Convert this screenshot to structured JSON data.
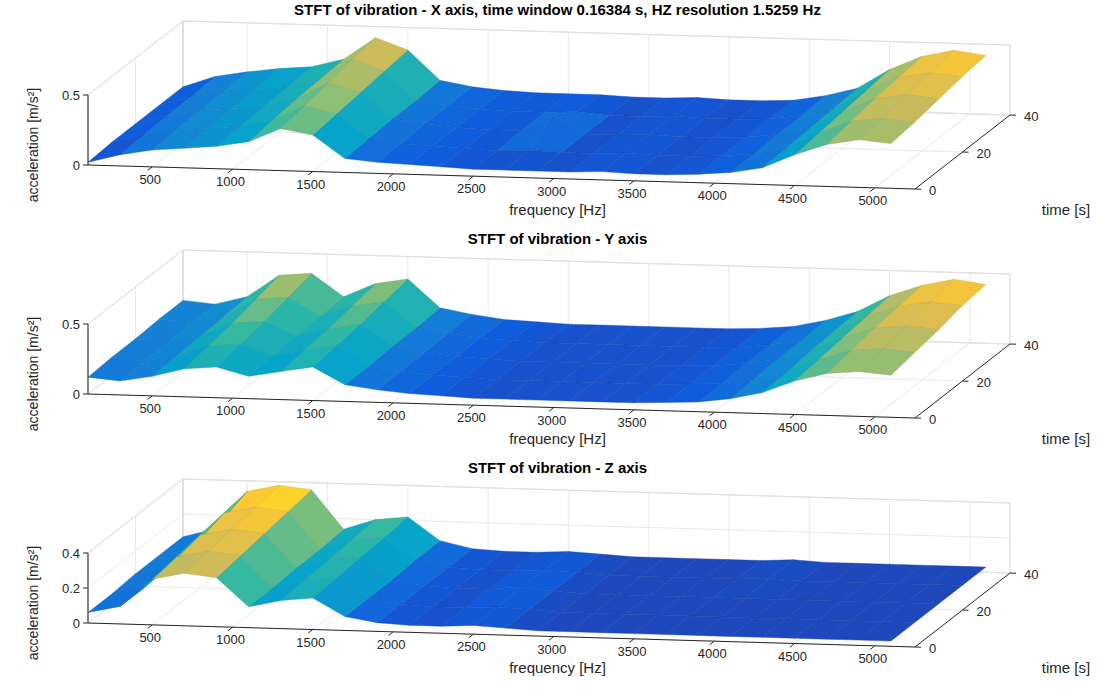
{
  "chart_data": [
    {
      "type": "surface",
      "title": "STFT of vibration - X axis, time window 0.16384 s, HZ resolution 1.5259 Hz",
      "xlabel": "frequency [Hz]",
      "ylabel": "time [s]",
      "zlabel": "acceleration [m/s²]",
      "x": [
        100,
        300,
        500,
        700,
        900,
        1100,
        1300,
        1500,
        1700,
        1900,
        2100,
        2300,
        2500,
        2700,
        2900,
        3100,
        3300,
        3500,
        3700,
        3900,
        4100,
        4300,
        4500,
        4700,
        4900,
        5100
      ],
      "y": [
        0,
        10,
        20,
        30,
        40
      ],
      "z": [
        [
          0.02,
          0.08,
          0.12,
          0.14,
          0.16,
          0.2,
          0.3,
          0.26,
          0.1,
          0.08,
          0.07,
          0.06,
          0.05,
          0.05,
          0.05,
          0.05,
          0.06,
          0.05,
          0.05,
          0.06,
          0.08,
          0.12,
          0.22,
          0.3,
          0.34,
          0.32
        ],
        [
          0.03,
          0.09,
          0.13,
          0.15,
          0.17,
          0.22,
          0.33,
          0.28,
          0.11,
          0.08,
          0.07,
          0.06,
          0.05,
          0.06,
          0.05,
          0.05,
          0.06,
          0.05,
          0.05,
          0.06,
          0.08,
          0.13,
          0.24,
          0.33,
          0.36,
          0.34
        ],
        [
          0.03,
          0.1,
          0.14,
          0.16,
          0.18,
          0.24,
          0.36,
          0.3,
          0.12,
          0.09,
          0.07,
          0.06,
          0.06,
          0.18,
          0.05,
          0.05,
          0.06,
          0.05,
          0.05,
          0.06,
          0.09,
          0.14,
          0.26,
          0.36,
          0.4,
          0.37
        ],
        [
          0.03,
          0.1,
          0.14,
          0.17,
          0.19,
          0.25,
          0.4,
          0.32,
          0.12,
          0.09,
          0.07,
          0.06,
          0.06,
          0.07,
          0.05,
          0.05,
          0.06,
          0.05,
          0.05,
          0.06,
          0.09,
          0.15,
          0.28,
          0.38,
          0.42,
          0.4
        ],
        [
          0.03,
          0.11,
          0.15,
          0.18,
          0.2,
          0.26,
          0.42,
          0.34,
          0.13,
          0.09,
          0.07,
          0.06,
          0.06,
          0.06,
          0.05,
          0.05,
          0.06,
          0.05,
          0.05,
          0.06,
          0.1,
          0.16,
          0.3,
          0.4,
          0.45,
          0.42
        ]
      ],
      "xlim": [
        100,
        5250
      ],
      "xticks": [
        500,
        1000,
        1500,
        2000,
        2500,
        3000,
        3500,
        4000,
        4500,
        5000
      ],
      "ylim": [
        0,
        40
      ],
      "yticks": [
        0,
        20,
        40
      ],
      "zlim": [
        0,
        0.5
      ],
      "zticks": [
        0,
        0.5
      ],
      "grid": true
    },
    {
      "type": "surface",
      "title": "STFT of vibration - Y axis",
      "xlabel": "frequency [Hz]",
      "ylabel": "time [s]",
      "zlabel": "acceleration [m/s²]",
      "x": [
        100,
        300,
        500,
        700,
        900,
        1100,
        1300,
        1500,
        1700,
        1900,
        2100,
        2300,
        2500,
        2700,
        2900,
        3100,
        3300,
        3500,
        3700,
        3900,
        4100,
        4300,
        4500,
        4700,
        4900,
        5100
      ],
      "y": [
        0,
        10,
        20,
        30,
        40
      ],
      "z": [
        [
          0.12,
          0.1,
          0.14,
          0.2,
          0.22,
          0.16,
          0.2,
          0.24,
          0.12,
          0.09,
          0.07,
          0.06,
          0.05,
          0.05,
          0.05,
          0.05,
          0.05,
          0.05,
          0.06,
          0.07,
          0.1,
          0.15,
          0.24,
          0.3,
          0.32,
          0.3
        ],
        [
          0.13,
          0.11,
          0.15,
          0.23,
          0.25,
          0.17,
          0.22,
          0.26,
          0.12,
          0.09,
          0.07,
          0.06,
          0.05,
          0.05,
          0.05,
          0.05,
          0.05,
          0.05,
          0.06,
          0.07,
          0.11,
          0.16,
          0.26,
          0.33,
          0.35,
          0.33
        ],
        [
          0.13,
          0.11,
          0.16,
          0.26,
          0.28,
          0.18,
          0.24,
          0.28,
          0.13,
          0.09,
          0.07,
          0.06,
          0.05,
          0.05,
          0.05,
          0.05,
          0.05,
          0.05,
          0.06,
          0.08,
          0.12,
          0.18,
          0.28,
          0.36,
          0.38,
          0.36
        ],
        [
          0.14,
          0.12,
          0.17,
          0.3,
          0.32,
          0.19,
          0.27,
          0.31,
          0.13,
          0.1,
          0.07,
          0.06,
          0.05,
          0.05,
          0.05,
          0.05,
          0.05,
          0.05,
          0.06,
          0.08,
          0.12,
          0.19,
          0.3,
          0.38,
          0.42,
          0.4
        ],
        [
          0.14,
          0.12,
          0.18,
          0.34,
          0.36,
          0.2,
          0.3,
          0.34,
          0.14,
          0.1,
          0.07,
          0.06,
          0.05,
          0.05,
          0.05,
          0.05,
          0.05,
          0.05,
          0.06,
          0.08,
          0.13,
          0.2,
          0.32,
          0.4,
          0.45,
          0.42
        ]
      ],
      "xlim": [
        100,
        5250
      ],
      "xticks": [
        500,
        1000,
        1500,
        2000,
        2500,
        3000,
        3500,
        4000,
        4500,
        5000
      ],
      "ylim": [
        0,
        40
      ],
      "yticks": [
        0,
        20,
        40
      ],
      "zlim": [
        0,
        0.5
      ],
      "zticks": [
        0,
        0.5
      ],
      "grid": true
    },
    {
      "type": "surface",
      "title": "STFT of vibration - Z axis",
      "xlabel": "frequency [Hz]",
      "ylabel": "time [s]",
      "zlabel": "acceleration [m/s²]",
      "x": [
        100,
        300,
        500,
        700,
        900,
        1100,
        1300,
        1500,
        1700,
        1900,
        2100,
        2300,
        2500,
        2700,
        2900,
        3100,
        3300,
        3500,
        3700,
        3900,
        4100,
        4300,
        4500,
        4700,
        4900,
        5100
      ],
      "y": [
        0,
        10,
        20,
        30,
        40
      ],
      "z": [
        [
          0.06,
          0.1,
          0.26,
          0.3,
          0.28,
          0.12,
          0.16,
          0.18,
          0.08,
          0.05,
          0.04,
          0.04,
          0.05,
          0.04,
          0.03,
          0.03,
          0.03,
          0.03,
          0.03,
          0.03,
          0.03,
          0.03,
          0.03,
          0.03,
          0.03,
          0.03
        ],
        [
          0.06,
          0.1,
          0.28,
          0.32,
          0.3,
          0.12,
          0.17,
          0.19,
          0.08,
          0.05,
          0.04,
          0.04,
          0.05,
          0.04,
          0.03,
          0.03,
          0.03,
          0.03,
          0.03,
          0.03,
          0.03,
          0.03,
          0.03,
          0.03,
          0.03,
          0.03
        ],
        [
          0.07,
          0.11,
          0.3,
          0.34,
          0.32,
          0.13,
          0.18,
          0.2,
          0.08,
          0.05,
          0.04,
          0.04,
          0.06,
          0.04,
          0.03,
          0.03,
          0.03,
          0.03,
          0.03,
          0.03,
          0.03,
          0.03,
          0.03,
          0.03,
          0.03,
          0.03
        ],
        [
          0.07,
          0.11,
          0.32,
          0.36,
          0.34,
          0.13,
          0.19,
          0.21,
          0.09,
          0.05,
          0.04,
          0.04,
          0.05,
          0.04,
          0.03,
          0.03,
          0.03,
          0.03,
          0.03,
          0.04,
          0.03,
          0.03,
          0.03,
          0.03,
          0.03,
          0.03
        ],
        [
          0.07,
          0.12,
          0.34,
          0.38,
          0.36,
          0.14,
          0.2,
          0.22,
          0.09,
          0.05,
          0.04,
          0.04,
          0.05,
          0.04,
          0.03,
          0.03,
          0.03,
          0.03,
          0.03,
          0.04,
          0.03,
          0.03,
          0.03,
          0.03,
          0.03,
          0.03
        ]
      ],
      "xlim": [
        100,
        5250
      ],
      "xticks": [
        500,
        1000,
        1500,
        2000,
        2500,
        3000,
        3500,
        4000,
        4500,
        5000
      ],
      "ylim": [
        0,
        40
      ],
      "yticks": [
        0,
        20,
        40
      ],
      "zlim": [
        0,
        0.4
      ],
      "zticks": [
        0,
        0.2,
        0.4
      ],
      "grid": true
    }
  ]
}
